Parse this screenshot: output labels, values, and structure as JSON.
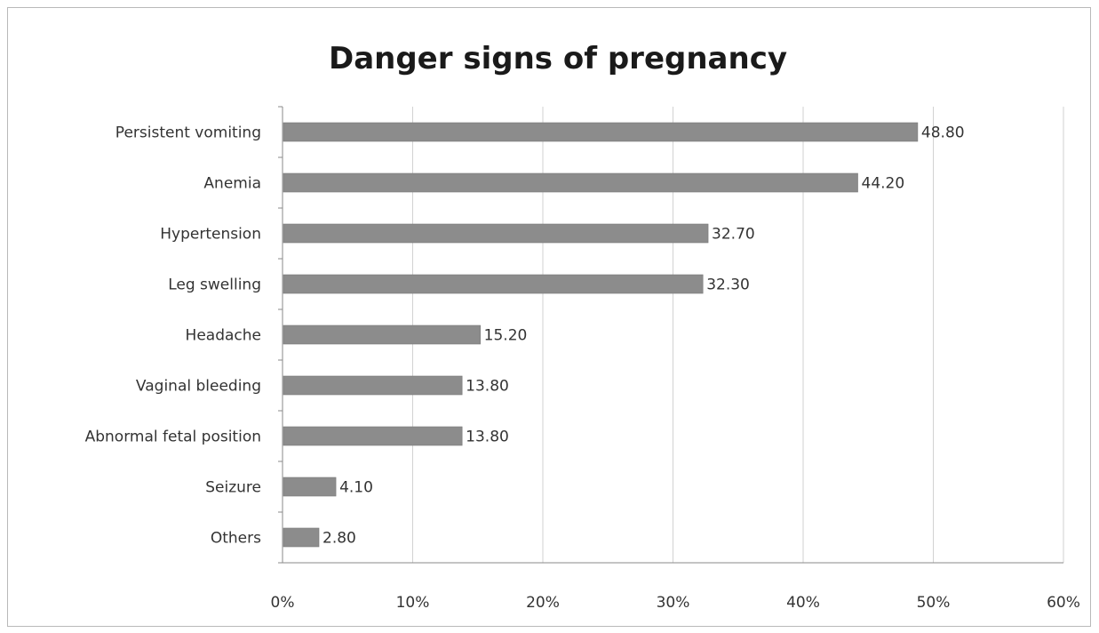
{
  "chart_data": {
    "type": "bar",
    "orientation": "horizontal",
    "title": "Danger signs of pregnancy",
    "xlabel": "",
    "ylabel": "",
    "categories": [
      "Persistent vomiting",
      "Anemia",
      "Hypertension",
      "Leg swelling",
      "Headache",
      "Vaginal bleeding",
      "Abnormal fetal position",
      "Seizure",
      "Others"
    ],
    "values": [
      48.8,
      44.2,
      32.7,
      32.3,
      15.2,
      13.8,
      13.8,
      4.1,
      2.8
    ],
    "value_labels": [
      "48.80",
      "44.20",
      "32.70",
      "32.30",
      "15.20",
      "13.80",
      "13.80",
      "4.10",
      "2.80"
    ],
    "xlim": [
      0,
      60
    ],
    "x_ticks": [
      "0%",
      "10%",
      "20%",
      "30%",
      "40%",
      "50%",
      "60%"
    ],
    "grid": true,
    "legend": "none",
    "bar_color": "#8c8c8c",
    "grid_color": "#d2d2d2"
  }
}
